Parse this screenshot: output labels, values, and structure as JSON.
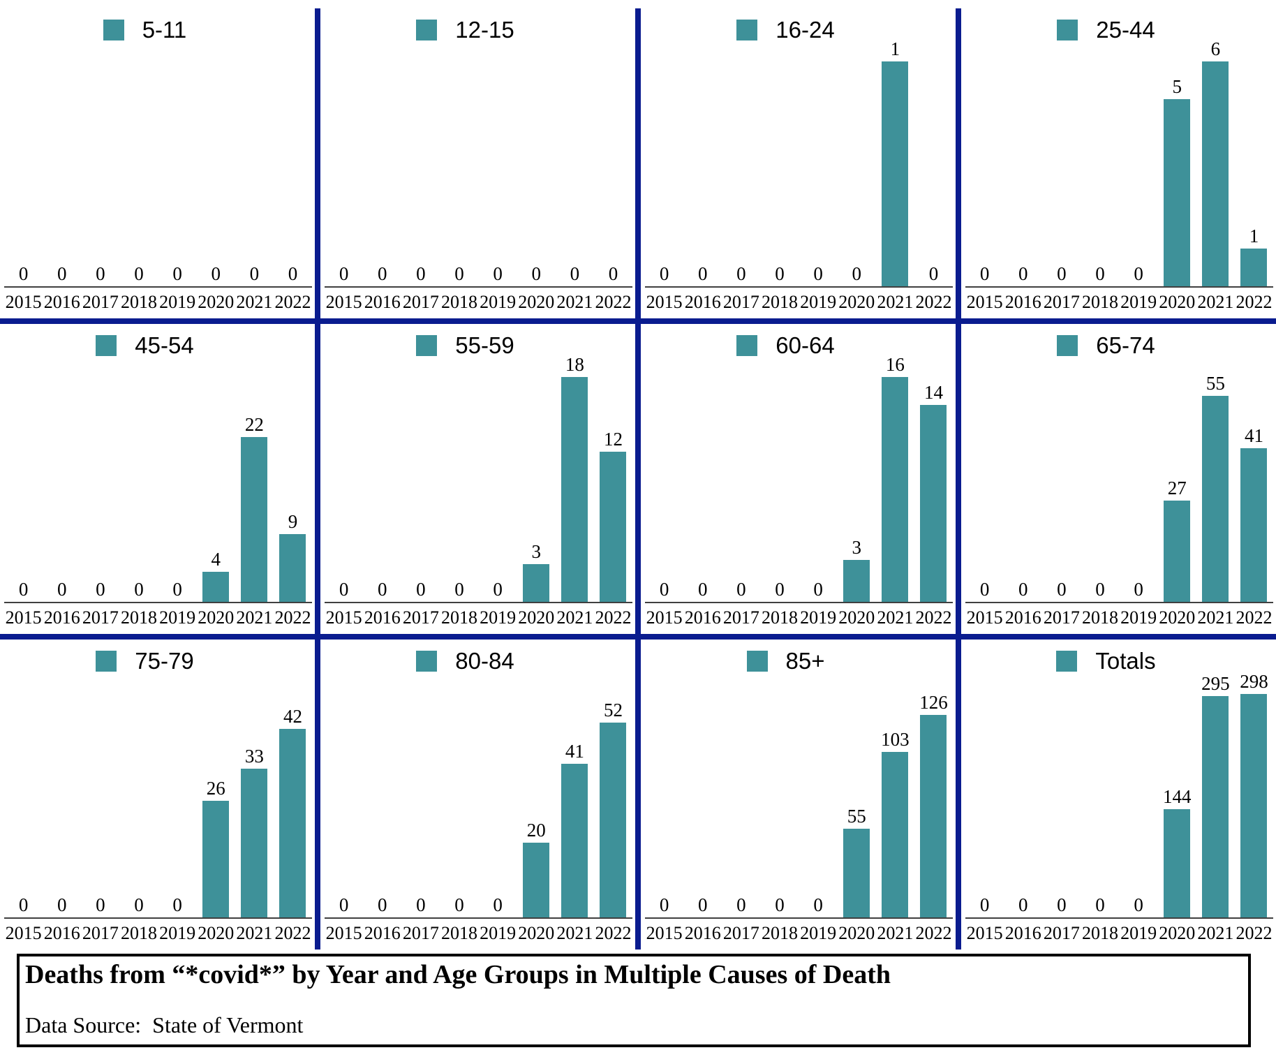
{
  "chart_data": {
    "type": "bar",
    "title": "Deaths from “*covid*” by Year and Age Groups in Multiple Causes of Death",
    "source_label": "Data Source:  State of Vermont",
    "categories": [
      "2015",
      "2016",
      "2017",
      "2018",
      "2019",
      "2020",
      "2021",
      "2022"
    ],
    "grid": false,
    "legend_position": "top-center",
    "bar_color": "#3E9199",
    "divider_color": "#0A1C8F",
    "axis_color": "#404040",
    "panels": [
      {
        "label": "5-11",
        "values": [
          0,
          0,
          0,
          0,
          0,
          0,
          0,
          0
        ],
        "ylim": [
          0,
          1
        ]
      },
      {
        "label": "12-15",
        "values": [
          0,
          0,
          0,
          0,
          0,
          0,
          0,
          0
        ],
        "ylim": [
          0,
          1
        ]
      },
      {
        "label": "16-24",
        "values": [
          0,
          0,
          0,
          0,
          0,
          0,
          1,
          0
        ],
        "ylim": [
          0,
          1
        ]
      },
      {
        "label": "25-44",
        "values": [
          0,
          0,
          0,
          0,
          0,
          5,
          6,
          1
        ],
        "ylim": [
          0,
          6
        ]
      },
      {
        "label": "45-54",
        "values": [
          0,
          0,
          0,
          0,
          0,
          4,
          22,
          9
        ],
        "ylim": [
          0,
          30
        ]
      },
      {
        "label": "55-59",
        "values": [
          0,
          0,
          0,
          0,
          0,
          3,
          18,
          12
        ],
        "ylim": [
          0,
          18
        ]
      },
      {
        "label": "60-64",
        "values": [
          0,
          0,
          0,
          0,
          0,
          3,
          16,
          14
        ],
        "ylim": [
          0,
          16
        ]
      },
      {
        "label": "65-74",
        "values": [
          0,
          0,
          0,
          0,
          0,
          27,
          55,
          41
        ],
        "ylim": [
          0,
          60
        ]
      },
      {
        "label": "75-79",
        "values": [
          0,
          0,
          0,
          0,
          0,
          26,
          33,
          42
        ],
        "ylim": [
          0,
          50
        ]
      },
      {
        "label": "80-84",
        "values": [
          0,
          0,
          0,
          0,
          0,
          20,
          41,
          52
        ],
        "ylim": [
          0,
          60
        ]
      },
      {
        "label": "85+",
        "values": [
          0,
          0,
          0,
          0,
          0,
          55,
          103,
          126
        ],
        "ylim": [
          0,
          140
        ]
      },
      {
        "label": "Totals",
        "values": [
          0,
          0,
          0,
          0,
          0,
          144,
          295,
          298
        ],
        "ylim": [
          0,
          300
        ]
      }
    ]
  },
  "footer": {
    "title": "Deaths from “*covid*” by Year and Age Groups in Multiple Causes of Death",
    "source": "Data Source:  State of Vermont"
  }
}
